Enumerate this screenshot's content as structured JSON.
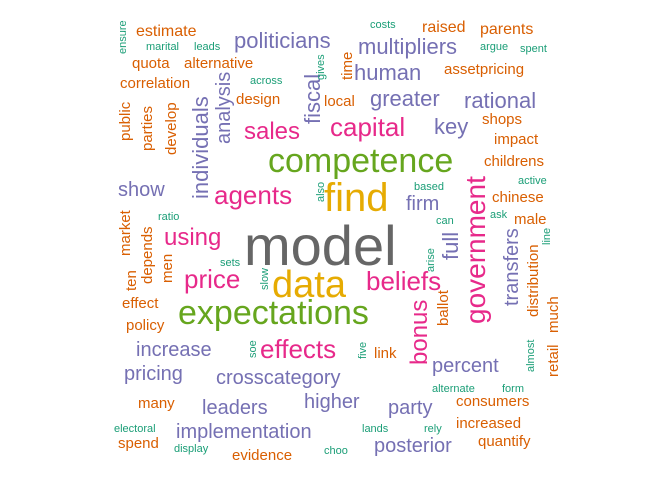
{
  "palette": {
    "teal": "#1b9e77",
    "orange": "#d95f02",
    "purple": "#7570b3",
    "magenta": "#e7298a",
    "green": "#66a61e",
    "gold": "#e6ab02",
    "gray": "#666666"
  },
  "words": [
    {
      "text": "model",
      "color": "gray",
      "size": 56
    },
    {
      "text": "find",
      "color": "gold",
      "size": 40
    },
    {
      "text": "data",
      "color": "gold",
      "size": 38
    },
    {
      "text": "competence",
      "color": "green",
      "size": 34
    },
    {
      "text": "expectations",
      "color": "green",
      "size": 34
    },
    {
      "text": "government",
      "color": "magenta",
      "size": 28
    },
    {
      "text": "beliefs",
      "color": "magenta",
      "size": 26
    },
    {
      "text": "capital",
      "color": "magenta",
      "size": 26
    },
    {
      "text": "agents",
      "color": "magenta",
      "size": 26
    },
    {
      "text": "price",
      "color": "magenta",
      "size": 26
    },
    {
      "text": "effects",
      "color": "magenta",
      "size": 26
    },
    {
      "text": "sales",
      "color": "magenta",
      "size": 24
    },
    {
      "text": "using",
      "color": "magenta",
      "size": 24
    },
    {
      "text": "bonus",
      "color": "magenta",
      "size": 24
    },
    {
      "text": "politicians",
      "color": "purple",
      "size": 22
    },
    {
      "text": "multipliers",
      "color": "purple",
      "size": 22
    },
    {
      "text": "human",
      "color": "purple",
      "size": 22
    },
    {
      "text": "greater",
      "color": "purple",
      "size": 22
    },
    {
      "text": "rational",
      "color": "purple",
      "size": 22
    },
    {
      "text": "fiscal",
      "color": "purple",
      "size": 22
    },
    {
      "text": "individuals",
      "color": "purple",
      "size": 22
    },
    {
      "text": "analysis",
      "color": "purple",
      "size": 20
    },
    {
      "text": "key",
      "color": "purple",
      "size": 22
    },
    {
      "text": "show",
      "color": "purple",
      "size": 20
    },
    {
      "text": "firm",
      "color": "purple",
      "size": 20
    },
    {
      "text": "full",
      "color": "purple",
      "size": 22
    },
    {
      "text": "transfers",
      "color": "purple",
      "size": 20
    },
    {
      "text": "increase",
      "color": "purple",
      "size": 20
    },
    {
      "text": "pricing",
      "color": "purple",
      "size": 20
    },
    {
      "text": "crosscategory",
      "color": "purple",
      "size": 20
    },
    {
      "text": "percent",
      "color": "purple",
      "size": 20
    },
    {
      "text": "higher",
      "color": "purple",
      "size": 20
    },
    {
      "text": "leaders",
      "color": "purple",
      "size": 20
    },
    {
      "text": "party",
      "color": "purple",
      "size": 20
    },
    {
      "text": "implementation",
      "color": "purple",
      "size": 20
    },
    {
      "text": "posterior",
      "color": "purple",
      "size": 20
    },
    {
      "text": "estimate",
      "color": "orange",
      "size": 16
    },
    {
      "text": "raised",
      "color": "orange",
      "size": 16
    },
    {
      "text": "parents",
      "color": "orange",
      "size": 16
    },
    {
      "text": "alternative",
      "color": "orange",
      "size": 15
    },
    {
      "text": "quota",
      "color": "orange",
      "size": 15
    },
    {
      "text": "assetpricing",
      "color": "orange",
      "size": 15
    },
    {
      "text": "correlation",
      "color": "orange",
      "size": 15
    },
    {
      "text": "design",
      "color": "orange",
      "size": 15
    },
    {
      "text": "local",
      "color": "orange",
      "size": 15
    },
    {
      "text": "time",
      "color": "orange",
      "size": 15
    },
    {
      "text": "public",
      "color": "orange",
      "size": 15
    },
    {
      "text": "parties",
      "color": "orange",
      "size": 15
    },
    {
      "text": "develop",
      "color": "orange",
      "size": 15
    },
    {
      "text": "shops",
      "color": "orange",
      "size": 15
    },
    {
      "text": "impact",
      "color": "orange",
      "size": 15
    },
    {
      "text": "childrens",
      "color": "orange",
      "size": 15
    },
    {
      "text": "chinese",
      "color": "orange",
      "size": 15
    },
    {
      "text": "male",
      "color": "orange",
      "size": 15
    },
    {
      "text": "market",
      "color": "orange",
      "size": 15
    },
    {
      "text": "depends",
      "color": "orange",
      "size": 15
    },
    {
      "text": "men",
      "color": "orange",
      "size": 15
    },
    {
      "text": "ten",
      "color": "orange",
      "size": 15
    },
    {
      "text": "effect",
      "color": "orange",
      "size": 15
    },
    {
      "text": "policy",
      "color": "orange",
      "size": 15
    },
    {
      "text": "ballot",
      "color": "orange",
      "size": 15
    },
    {
      "text": "distribution",
      "color": "orange",
      "size": 15
    },
    {
      "text": "much",
      "color": "orange",
      "size": 15
    },
    {
      "text": "link",
      "color": "orange",
      "size": 15
    },
    {
      "text": "retail",
      "color": "orange",
      "size": 15
    },
    {
      "text": "many",
      "color": "orange",
      "size": 15
    },
    {
      "text": "consumers",
      "color": "orange",
      "size": 15
    },
    {
      "text": "increased",
      "color": "orange",
      "size": 15
    },
    {
      "text": "quantify",
      "color": "orange",
      "size": 15
    },
    {
      "text": "spend",
      "color": "orange",
      "size": 15
    },
    {
      "text": "evidence",
      "color": "orange",
      "size": 15
    },
    {
      "text": "ensure",
      "color": "teal",
      "size": 11
    },
    {
      "text": "marital",
      "color": "teal",
      "size": 11
    },
    {
      "text": "leads",
      "color": "teal",
      "size": 11
    },
    {
      "text": "costs",
      "color": "teal",
      "size": 11
    },
    {
      "text": "argue",
      "color": "teal",
      "size": 11
    },
    {
      "text": "spent",
      "color": "teal",
      "size": 11
    },
    {
      "text": "gives",
      "color": "teal",
      "size": 11
    },
    {
      "text": "across",
      "color": "teal",
      "size": 11
    },
    {
      "text": "also",
      "color": "teal",
      "size": 11
    },
    {
      "text": "based",
      "color": "teal",
      "size": 11
    },
    {
      "text": "active",
      "color": "teal",
      "size": 11
    },
    {
      "text": "ratio",
      "color": "teal",
      "size": 11
    },
    {
      "text": "can",
      "color": "teal",
      "size": 11
    },
    {
      "text": "ask",
      "color": "teal",
      "size": 11
    },
    {
      "text": "arise",
      "color": "teal",
      "size": 11
    },
    {
      "text": "line",
      "color": "teal",
      "size": 11
    },
    {
      "text": "sets",
      "color": "teal",
      "size": 11
    },
    {
      "text": "slow",
      "color": "teal",
      "size": 11
    },
    {
      "text": "soe",
      "color": "teal",
      "size": 11
    },
    {
      "text": "five",
      "color": "teal",
      "size": 11
    },
    {
      "text": "almost",
      "color": "teal",
      "size": 11
    },
    {
      "text": "alternate",
      "color": "teal",
      "size": 11
    },
    {
      "text": "form",
      "color": "teal",
      "size": 11
    },
    {
      "text": "electoral",
      "color": "teal",
      "size": 11
    },
    {
      "text": "lands",
      "color": "teal",
      "size": 11
    },
    {
      "text": "rely",
      "color": "teal",
      "size": 11
    },
    {
      "text": "display",
      "color": "teal",
      "size": 11
    },
    {
      "text": "choo",
      "color": "teal",
      "size": 11
    }
  ]
}
